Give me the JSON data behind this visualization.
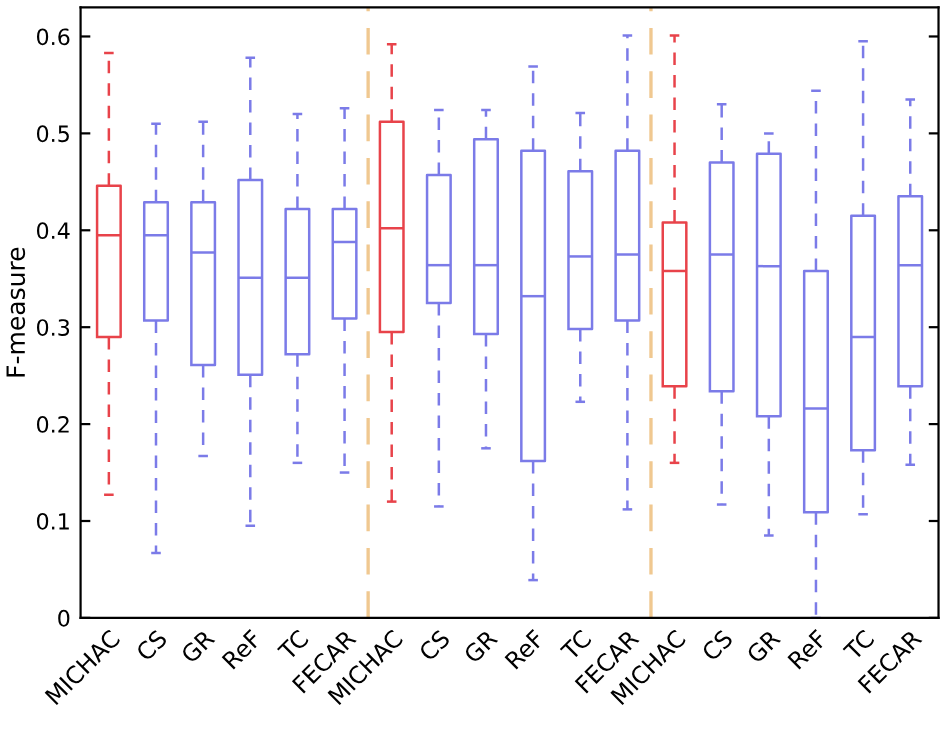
{
  "chart_data": {
    "type": "box",
    "ylabel": "F-measure",
    "categories": [
      "MICHAC",
      "CS",
      "GR",
      "ReF",
      "TC",
      "FECAR",
      "MICHAC",
      "CS",
      "GR",
      "ReF",
      "TC",
      "FECAR",
      "MICHAC",
      "CS",
      "GR",
      "ReF",
      "TC",
      "FECAR"
    ],
    "colors": [
      "#e8434a",
      "#7b7be8",
      "#7b7be8",
      "#7b7be8",
      "#7b7be8",
      "#7b7be8",
      "#e8434a",
      "#7b7be8",
      "#7b7be8",
      "#7b7be8",
      "#7b7be8",
      "#7b7be8",
      "#e8434a",
      "#7b7be8",
      "#7b7be8",
      "#7b7be8",
      "#7b7be8",
      "#7b7be8"
    ],
    "boxes": [
      {
        "low": 0.127,
        "q1": 0.29,
        "median": 0.395,
        "q3": 0.446,
        "high": 0.583
      },
      {
        "low": 0.067,
        "q1": 0.307,
        "median": 0.395,
        "q3": 0.429,
        "high": 0.51
      },
      {
        "low": 0.167,
        "q1": 0.261,
        "median": 0.377,
        "q3": 0.429,
        "high": 0.512
      },
      {
        "low": 0.095,
        "q1": 0.251,
        "median": 0.351,
        "q3": 0.452,
        "high": 0.578
      },
      {
        "low": 0.16,
        "q1": 0.272,
        "median": 0.351,
        "q3": 0.422,
        "high": 0.52
      },
      {
        "low": 0.15,
        "q1": 0.309,
        "median": 0.388,
        "q3": 0.422,
        "high": 0.526
      },
      {
        "low": 0.12,
        "q1": 0.295,
        "median": 0.402,
        "q3": 0.512,
        "high": 0.592
      },
      {
        "low": 0.115,
        "q1": 0.325,
        "median": 0.364,
        "q3": 0.457,
        "high": 0.524
      },
      {
        "low": 0.175,
        "q1": 0.293,
        "median": 0.364,
        "q3": 0.494,
        "high": 0.524
      },
      {
        "low": 0.039,
        "q1": 0.162,
        "median": 0.332,
        "q3": 0.482,
        "high": 0.569
      },
      {
        "low": 0.223,
        "q1": 0.298,
        "median": 0.373,
        "q3": 0.461,
        "high": 0.521
      },
      {
        "low": 0.112,
        "q1": 0.307,
        "median": 0.375,
        "q3": 0.482,
        "high": 0.601
      },
      {
        "low": 0.16,
        "q1": 0.239,
        "median": 0.358,
        "q3": 0.408,
        "high": 0.601
      },
      {
        "low": 0.117,
        "q1": 0.234,
        "median": 0.375,
        "q3": 0.47,
        "high": 0.53
      },
      {
        "low": 0.085,
        "q1": 0.208,
        "median": 0.363,
        "q3": 0.479,
        "high": 0.5
      },
      {
        "low": 0.0,
        "q1": 0.109,
        "median": 0.216,
        "q3": 0.358,
        "high": 0.544
      },
      {
        "low": 0.107,
        "q1": 0.173,
        "median": 0.29,
        "q3": 0.415,
        "high": 0.595
      },
      {
        "low": 0.158,
        "q1": 0.239,
        "median": 0.364,
        "q3": 0.435,
        "high": 0.535
      }
    ],
    "ylim": [
      0,
      0.63
    ],
    "yticks": [
      0,
      0.1,
      0.2,
      0.3,
      0.4,
      0.5,
      0.6
    ],
    "grid": false
  }
}
